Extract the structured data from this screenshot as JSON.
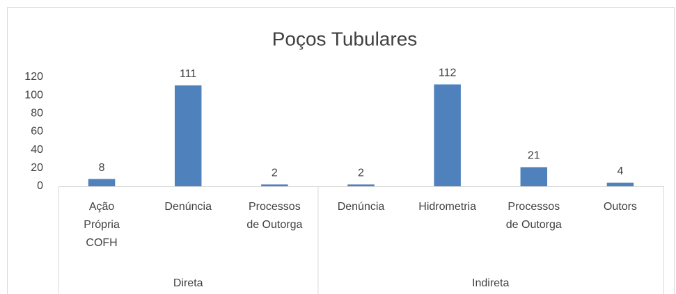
{
  "chart_data": {
    "type": "bar",
    "title": "Poços Tubulares",
    "color": "#4f81bd",
    "ylim": [
      0,
      120
    ],
    "yticks": [
      0,
      20,
      40,
      60,
      80,
      100,
      120
    ],
    "grid": false,
    "groups": [
      {
        "name": "Direta",
        "categories": [
          [
            "Ação",
            "Própria",
            "COFH"
          ],
          [
            "Denúncia"
          ],
          [
            "Processos",
            "de Outorga"
          ]
        ],
        "values": [
          8,
          111,
          2
        ]
      },
      {
        "name": "Indireta",
        "categories": [
          [
            "Denúncia"
          ],
          [
            "Hidrometria"
          ],
          [
            "Processos",
            "de Outorga"
          ],
          [
            "Outors"
          ]
        ],
        "values": [
          2,
          112,
          21,
          4
        ]
      }
    ]
  }
}
